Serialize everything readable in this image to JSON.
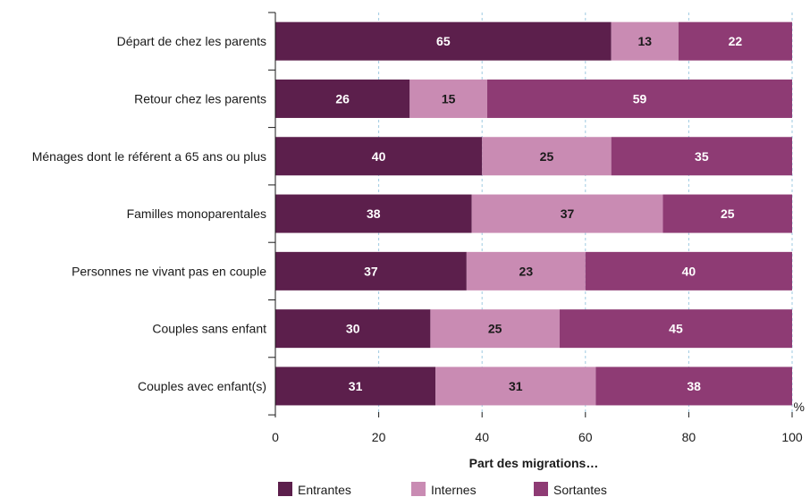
{
  "chart_data": {
    "type": "bar",
    "orientation": "horizontal",
    "stacked": true,
    "categories": [
      "Départ de chez les parents",
      "Retour chez les parents",
      "Ménages dont le référent a 65 ans ou plus",
      "Familles monoparentales",
      "Personnes ne vivant pas en couple",
      "Couples sans enfant",
      "Couples avec enfant(s)"
    ],
    "series": [
      {
        "name": "Entrantes",
        "color": "#5c1f4c",
        "label_color": "#ffffff",
        "values": [
          65,
          26,
          40,
          38,
          37,
          30,
          31
        ]
      },
      {
        "name": "Internes",
        "color": "#c98bb3",
        "label_color": "#1a1a1a",
        "values": [
          13,
          15,
          25,
          37,
          23,
          25,
          31
        ]
      },
      {
        "name": "Sortantes",
        "color": "#8e3b74",
        "label_color": "#ffffff",
        "values": [
          22,
          59,
          35,
          25,
          40,
          45,
          38
        ]
      }
    ],
    "xlabel": "Part des migrations…",
    "xunit": "%",
    "xlim": [
      0,
      100
    ],
    "xticks": [
      0,
      20,
      40,
      60,
      80,
      100
    ],
    "grid": "vertical-dashed",
    "legend_position": "bottom"
  }
}
